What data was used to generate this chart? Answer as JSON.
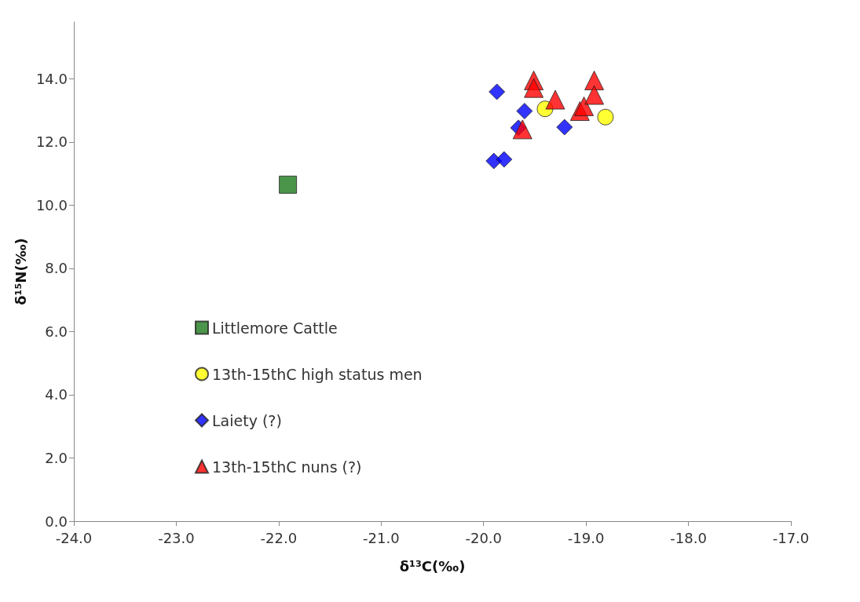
{
  "chart_data": {
    "type": "scatter",
    "xlabel": "δ¹³C(‰)",
    "ylabel": "δ¹⁵N(‰)",
    "xlim": [
      -24,
      -17
    ],
    "xticks": [
      {
        "value": -24,
        "label": "-24.0"
      },
      {
        "value": -23,
        "label": "-23.0"
      },
      {
        "value": -22,
        "label": "-22.0"
      },
      {
        "value": -21,
        "label": "-21.0"
      },
      {
        "value": -20,
        "label": "-20.0"
      },
      {
        "value": -19,
        "label": "-19.0"
      },
      {
        "value": -18,
        "label": "-18.0"
      },
      {
        "value": -17,
        "label": "-17.0"
      }
    ],
    "ylim": [
      0,
      15.8
    ],
    "yticks": [
      {
        "value": 0,
        "label": "0.0"
      },
      {
        "value": 2,
        "label": "2.0"
      },
      {
        "value": 4,
        "label": "4.0"
      },
      {
        "value": 6,
        "label": "6.0"
      },
      {
        "value": 8,
        "label": "8.0"
      },
      {
        "value": 10,
        "label": "10.0"
      },
      {
        "value": 12,
        "label": "12.0"
      },
      {
        "value": 14,
        "label": "14.0"
      }
    ],
    "grid": false,
    "legend": "bottom left",
    "series": [
      {
        "name": "Littlemore Cattle",
        "color": "#1e7a1e",
        "marker": "square",
        "x": [
          -21.91
        ],
        "values": [
          10.65
        ]
      },
      {
        "name": "13th-15thC high status men",
        "color": "#ffff00",
        "marker": "circle",
        "x": [
          -19.4,
          -18.81
        ],
        "values": [
          13.05,
          12.79
        ]
      },
      {
        "name": "Laiety (?)",
        "color": "#0000ff",
        "marker": "diamond",
        "x": [
          -19.87,
          -19.6,
          -19.66,
          -19.21,
          -19.9,
          -19.8
        ],
        "values": [
          13.59,
          12.98,
          12.45,
          12.47,
          11.4,
          11.45
        ]
      },
      {
        "name": "13th-15thC nuns (?)",
        "color": "#ff0000",
        "marker": "triangle",
        "x": [
          -19.51,
          -19.51,
          -19.3,
          -19.62,
          -19.06,
          -19.02,
          -18.92,
          -18.92
        ],
        "values": [
          13.95,
          13.71,
          13.34,
          12.4,
          12.98,
          13.13,
          13.95,
          13.49
        ]
      }
    ]
  }
}
